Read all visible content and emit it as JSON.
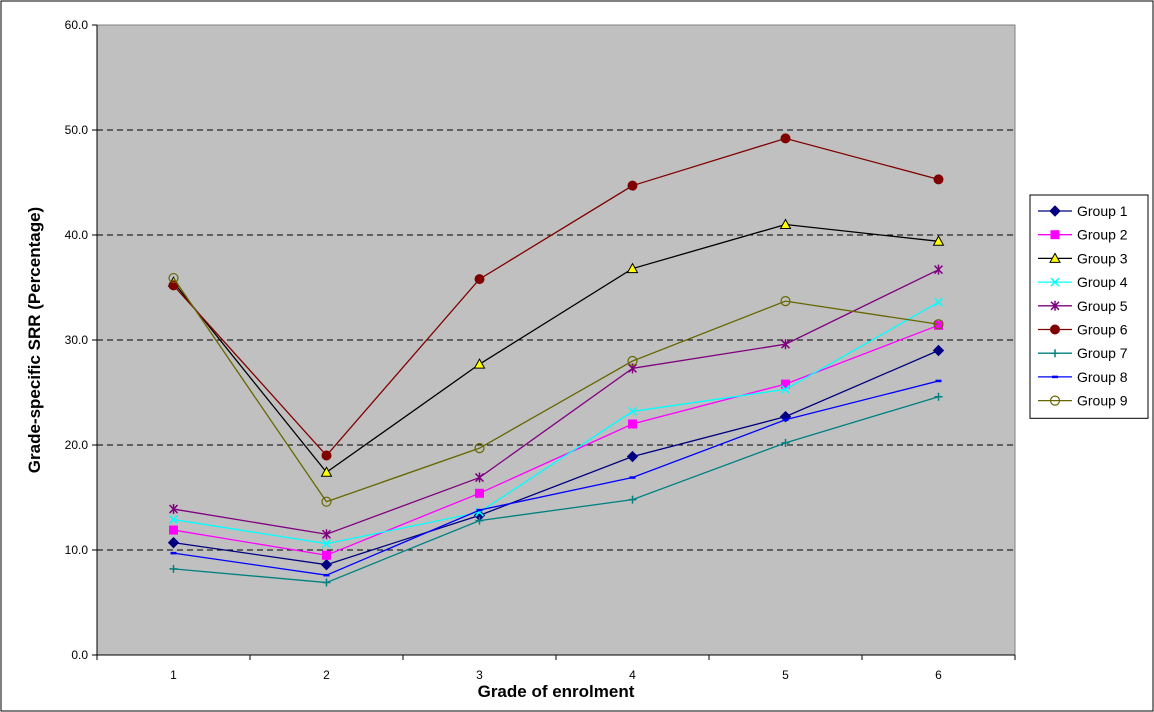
{
  "chart_data": {
    "type": "line",
    "title": "",
    "xlabel": "Grade of enrolment",
    "ylabel": "Grade-specific SRR (Percentage)",
    "ylim": [
      0,
      60
    ],
    "yticks": [
      "0.0",
      "10.0",
      "20.0",
      "30.0",
      "40.0",
      "50.0",
      "60.0"
    ],
    "categories": [
      "1",
      "2",
      "3",
      "4",
      "5",
      "6"
    ],
    "grid": "horizontal dashed",
    "legend_position": "right",
    "plot_background": "#c0c0c0",
    "series": [
      {
        "name": "Group 1",
        "color": "#000080",
        "marker": "diamond",
        "values": [
          10.7,
          8.6,
          13.3,
          18.9,
          22.7,
          29.0
        ]
      },
      {
        "name": "Group 2",
        "color": "#ff00ff",
        "marker": "square",
        "values": [
          11.9,
          9.5,
          15.4,
          22.0,
          25.8,
          31.4
        ]
      },
      {
        "name": "Group 3",
        "color": "#000000",
        "marker": "triangle",
        "values": [
          35.5,
          17.4,
          27.7,
          36.8,
          41.0,
          39.4
        ]
      },
      {
        "name": "Group 4",
        "color": "#00ffff",
        "marker": "x",
        "values": [
          12.9,
          10.6,
          13.6,
          23.2,
          25.3,
          33.6
        ]
      },
      {
        "name": "Group 5",
        "color": "#800080",
        "marker": "asterisk",
        "values": [
          13.9,
          11.5,
          16.9,
          27.3,
          29.6,
          36.7
        ]
      },
      {
        "name": "Group 6",
        "color": "#800000",
        "marker": "circle",
        "values": [
          35.2,
          19.0,
          35.8,
          44.7,
          49.2,
          45.3
        ]
      },
      {
        "name": "Group 7",
        "color": "#008080",
        "marker": "plus",
        "values": [
          8.2,
          6.9,
          12.8,
          14.8,
          20.2,
          24.6
        ]
      },
      {
        "name": "Group 8",
        "color": "#0000ff",
        "marker": "dash",
        "values": [
          9.7,
          7.6,
          13.8,
          16.9,
          22.4,
          26.1
        ]
      },
      {
        "name": "Group 9",
        "color": "#666600",
        "marker": "open-circle",
        "values": [
          35.9,
          14.6,
          19.7,
          28.0,
          33.7,
          31.5
        ]
      }
    ]
  }
}
